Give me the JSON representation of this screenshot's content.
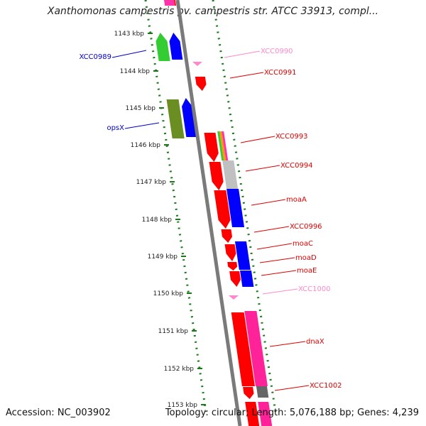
{
  "title": "Xanthomonas campestris pv. campestris str. ATCC 33913, compl...",
  "footer": {
    "accession": "Accession: NC_003902",
    "topology": "Topology: circular; Length: 5,076,188 bp; Genes: 4,239"
  },
  "colors": {
    "dots": "#1a7a1a",
    "backbone": "#7a7a7a",
    "red": "#ff0000",
    "blue": "#0000ff",
    "pink_label": "#ff88cc",
    "label_red": "#dd0000",
    "label_blue": "#0000cc"
  },
  "ticks": [
    {
      "label": "1143 kbp"
    },
    {
      "label": "1144 kbp"
    },
    {
      "label": "1145 kbp"
    },
    {
      "label": "1146 kbp"
    },
    {
      "label": "1147 kbp"
    },
    {
      "label": "1148 kbp"
    },
    {
      "label": "1149 kbp"
    },
    {
      "label": "1150 kbp"
    },
    {
      "label": "1151 kbp"
    },
    {
      "label": "1152 kbp"
    },
    {
      "label": "1153 kbp"
    }
  ],
  "genes": [
    {
      "name": "XCC0989",
      "side": "left",
      "color": "label_blue"
    },
    {
      "name": "XCC0990",
      "side": "right",
      "color": "pink_label"
    },
    {
      "name": "XCC0991",
      "side": "right",
      "color": "label_red"
    },
    {
      "name": "opsX",
      "side": "left",
      "color": "label_blue"
    },
    {
      "name": "XCC0993",
      "side": "right",
      "color": "label_red"
    },
    {
      "name": "XCC0994",
      "side": "right",
      "color": "label_red"
    },
    {
      "name": "moaA",
      "side": "right",
      "color": "label_red"
    },
    {
      "name": "XCC0996",
      "side": "right",
      "color": "label_red"
    },
    {
      "name": "moaC",
      "side": "right",
      "color": "label_red"
    },
    {
      "name": "moaD",
      "side": "right",
      "color": "label_red"
    },
    {
      "name": "moaE",
      "side": "right",
      "color": "label_red"
    },
    {
      "name": "XCC1000",
      "side": "right",
      "color": "pink_label"
    },
    {
      "name": "dnaX",
      "side": "right",
      "color": "label_red"
    },
    {
      "name": "XCC1002",
      "side": "right",
      "color": "label_red"
    }
  ]
}
